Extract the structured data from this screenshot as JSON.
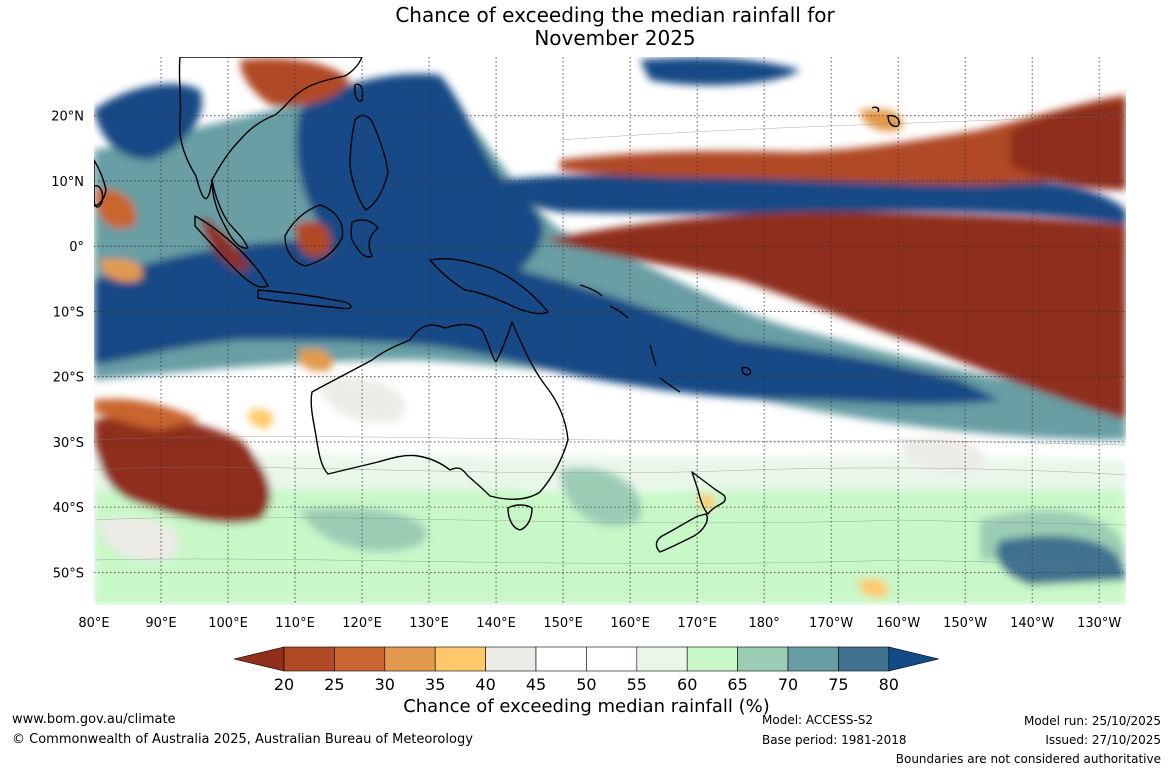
{
  "title": {
    "line1": "Chance of exceeding the median rainfall for",
    "line2": "November 2025"
  },
  "map": {
    "lon_range": [
      80,
      234
    ],
    "lat_range": [
      -55,
      29
    ],
    "lon_ticks": [
      {
        "value": 80,
        "label": "80°E"
      },
      {
        "value": 90,
        "label": "90°E"
      },
      {
        "value": 100,
        "label": "100°E"
      },
      {
        "value": 110,
        "label": "110°E"
      },
      {
        "value": 120,
        "label": "120°E"
      },
      {
        "value": 130,
        "label": "130°E"
      },
      {
        "value": 140,
        "label": "140°E"
      },
      {
        "value": 150,
        "label": "150°E"
      },
      {
        "value": 160,
        "label": "160°E"
      },
      {
        "value": 170,
        "label": "170°E"
      },
      {
        "value": 180,
        "label": "180°"
      },
      {
        "value": 190,
        "label": "170°W"
      },
      {
        "value": 200,
        "label": "160°W"
      },
      {
        "value": 210,
        "label": "150°W"
      },
      {
        "value": 220,
        "label": "140°W"
      },
      {
        "value": 230,
        "label": "130°W"
      }
    ],
    "lat_ticks": [
      {
        "value": 20,
        "label": "20°N"
      },
      {
        "value": 10,
        "label": "10°N"
      },
      {
        "value": 0,
        "label": "0°"
      },
      {
        "value": -10,
        "label": "10°S"
      },
      {
        "value": -20,
        "label": "20°S"
      },
      {
        "value": -30,
        "label": "30°S"
      },
      {
        "value": -40,
        "label": "40°S"
      },
      {
        "value": -50,
        "label": "50°S"
      }
    ]
  },
  "colorbar": {
    "title": "Chance of exceeding median rainfall (%)",
    "labels": [
      "20",
      "25",
      "30",
      "35",
      "40",
      "45",
      "50",
      "55",
      "60",
      "65",
      "70",
      "75",
      "80"
    ],
    "colors": [
      "#8f2f1c",
      "#b04a25",
      "#c9652f",
      "#e39a4e",
      "#ffc96b",
      "#ecebe6",
      "#ffffff",
      "#ffffff",
      "#e9f7e9",
      "#c8f8c8",
      "#9bcdb5",
      "#689ea4",
      "#40728f",
      "#124a85"
    ]
  },
  "footer": {
    "website": "www.bom.gov.au/climate",
    "copyright": "© Commonwealth of Australia 2025, Australian Bureau of Meteorology",
    "model": "Model: ACCESS-S2",
    "base_period": "Base period: 1981-2018",
    "model_run": "Model run: 25/10/2025",
    "issued": "Issued: 27/10/2025",
    "disclaimer": "Boundaries are not considered authoritative"
  }
}
